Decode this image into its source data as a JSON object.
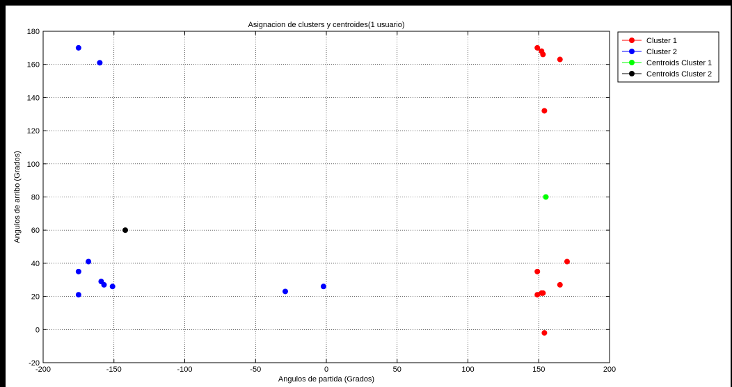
{
  "chart_data": {
    "type": "scatter",
    "title": "Asignacion de clusters y centroides(1 usuario)",
    "xlabel": "Angulos de partida (Grados)",
    "ylabel": "Angulos de arribo (Grados)",
    "xlim": [
      -200,
      200
    ],
    "ylim": [
      -20,
      180
    ],
    "xticks": [
      -200,
      -150,
      -100,
      -50,
      0,
      50,
      100,
      150,
      200
    ],
    "yticks": [
      -20,
      0,
      20,
      40,
      60,
      80,
      100,
      120,
      140,
      160,
      180
    ],
    "grid": true,
    "legend_position": "outside-right",
    "series": [
      {
        "name": "Cluster 1",
        "color": "#ff0000",
        "points": [
          [
            149,
            170
          ],
          [
            152,
            168
          ],
          [
            153,
            166
          ],
          [
            165,
            163
          ],
          [
            154,
            132
          ],
          [
            170,
            41
          ],
          [
            149,
            35
          ],
          [
            165,
            27
          ],
          [
            152,
            22
          ],
          [
            153,
            22
          ],
          [
            149,
            21
          ],
          [
            154,
            -2
          ]
        ]
      },
      {
        "name": "Cluster 2",
        "color": "#0000ff",
        "points": [
          [
            -175,
            170
          ],
          [
            -160,
            161
          ],
          [
            -168,
            41
          ],
          [
            -175,
            35
          ],
          [
            -159,
            29
          ],
          [
            -157,
            27
          ],
          [
            -151,
            26
          ],
          [
            -175,
            21
          ],
          [
            -29,
            23
          ],
          [
            -2,
            26
          ]
        ]
      },
      {
        "name": "Centroids Cluster 1",
        "color": "#00ff00",
        "points": [
          [
            155,
            80
          ]
        ]
      },
      {
        "name": "Centroids Cluster 2",
        "color": "#000000",
        "points": [
          [
            -142,
            60
          ]
        ]
      }
    ]
  }
}
